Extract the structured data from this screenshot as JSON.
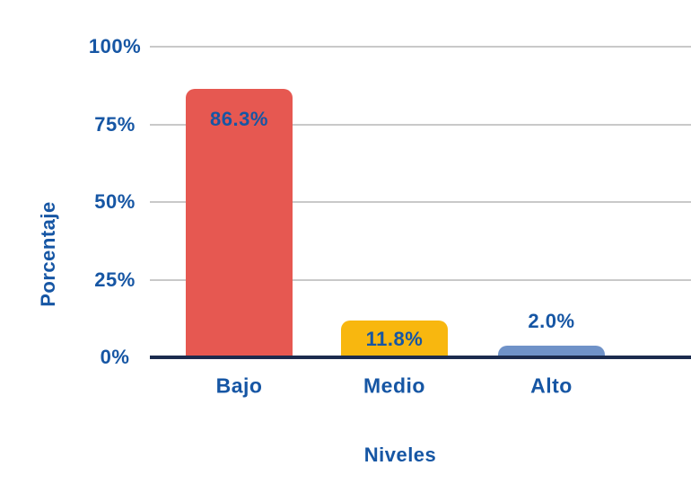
{
  "chart_data": {
    "type": "bar",
    "categories": [
      "Bajo",
      "Medio",
      "Alto"
    ],
    "values": [
      86.3,
      11.8,
      2.0
    ],
    "value_labels": [
      "86.3%",
      "11.8%",
      "2.0%"
    ],
    "label_placement": [
      "inside",
      "inside",
      "above"
    ],
    "bar_colors": [
      "#e65851",
      "#f8b70f",
      "#6f92c8"
    ],
    "title": "",
    "xlabel": "Niveles",
    "ylabel": "Porcentaje",
    "ylim": [
      0,
      100
    ],
    "yticks": [
      0,
      25,
      50,
      75,
      100
    ],
    "ytick_labels": [
      "0%",
      "25%",
      "50%",
      "75%",
      "100%"
    ],
    "grid": "horizontal",
    "legend": "none"
  },
  "colors": {
    "label_text": "#1656a4",
    "axis_line": "#1b2b4e",
    "gridline": "#c9c9c9",
    "background": "#ffffff"
  }
}
